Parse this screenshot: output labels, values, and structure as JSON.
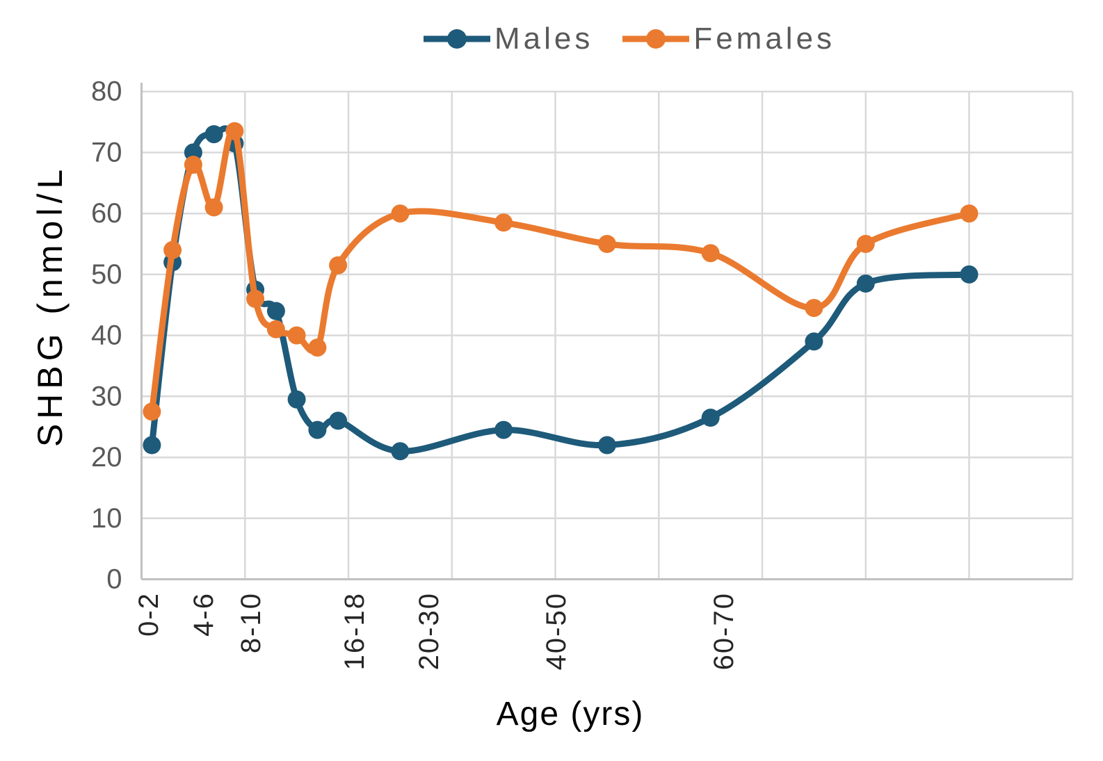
{
  "chart_data": {
    "type": "line",
    "title": "",
    "xlabel": "Age (yrs)",
    "ylabel": "SHBG (nmol/L",
    "x": [
      1,
      3,
      5,
      7,
      9,
      11,
      13,
      15,
      17,
      19,
      25,
      35,
      45,
      55,
      65,
      70,
      80
    ],
    "series": [
      {
        "name": "Males",
        "color": "#1E5A7A",
        "values": [
          22,
          52,
          70,
          73,
          71.5,
          47.5,
          44,
          29.5,
          24.5,
          26,
          21,
          24.5,
          22,
          26.5,
          39,
          48.5,
          50
        ]
      },
      {
        "name": "Females",
        "color": "#EA7A2F",
        "values": [
          27.5,
          54,
          68,
          61,
          73.5,
          46,
          41,
          40,
          38,
          51.5,
          60,
          58.5,
          55,
          53.5,
          44.5,
          55,
          60
        ]
      }
    ],
    "xlim": [
      0,
      90
    ],
    "ylim": [
      0,
      80
    ],
    "x_gridline_step": 10,
    "y_gridline_step": 10,
    "y_ticks": [
      0,
      10,
      20,
      30,
      40,
      50,
      60,
      70,
      80
    ],
    "x_tick_labels": [
      {
        "label": "0-2",
        "pos": 0.7
      },
      {
        "label": "4-6",
        "pos": 6.0
      },
      {
        "label": "8-10",
        "pos": 10.6
      },
      {
        "label": "16-18",
        "pos": 20.6
      },
      {
        "label": "20-30",
        "pos": 27.8
      },
      {
        "label": "40-50",
        "pos": 40.1
      },
      {
        "label": "60-70",
        "pos": 56.3
      }
    ],
    "grid": true,
    "smooth": true,
    "markers": true,
    "legend_position": "top"
  },
  "colors": {
    "gridline": "#D9D9D9",
    "axis_line": "#C1C1C1",
    "y_tick_text": "#595959",
    "x_tick_text": "#262626",
    "axis_title_text": "#000000",
    "legend_text": "#595959",
    "background": "#FFFFFF"
  }
}
